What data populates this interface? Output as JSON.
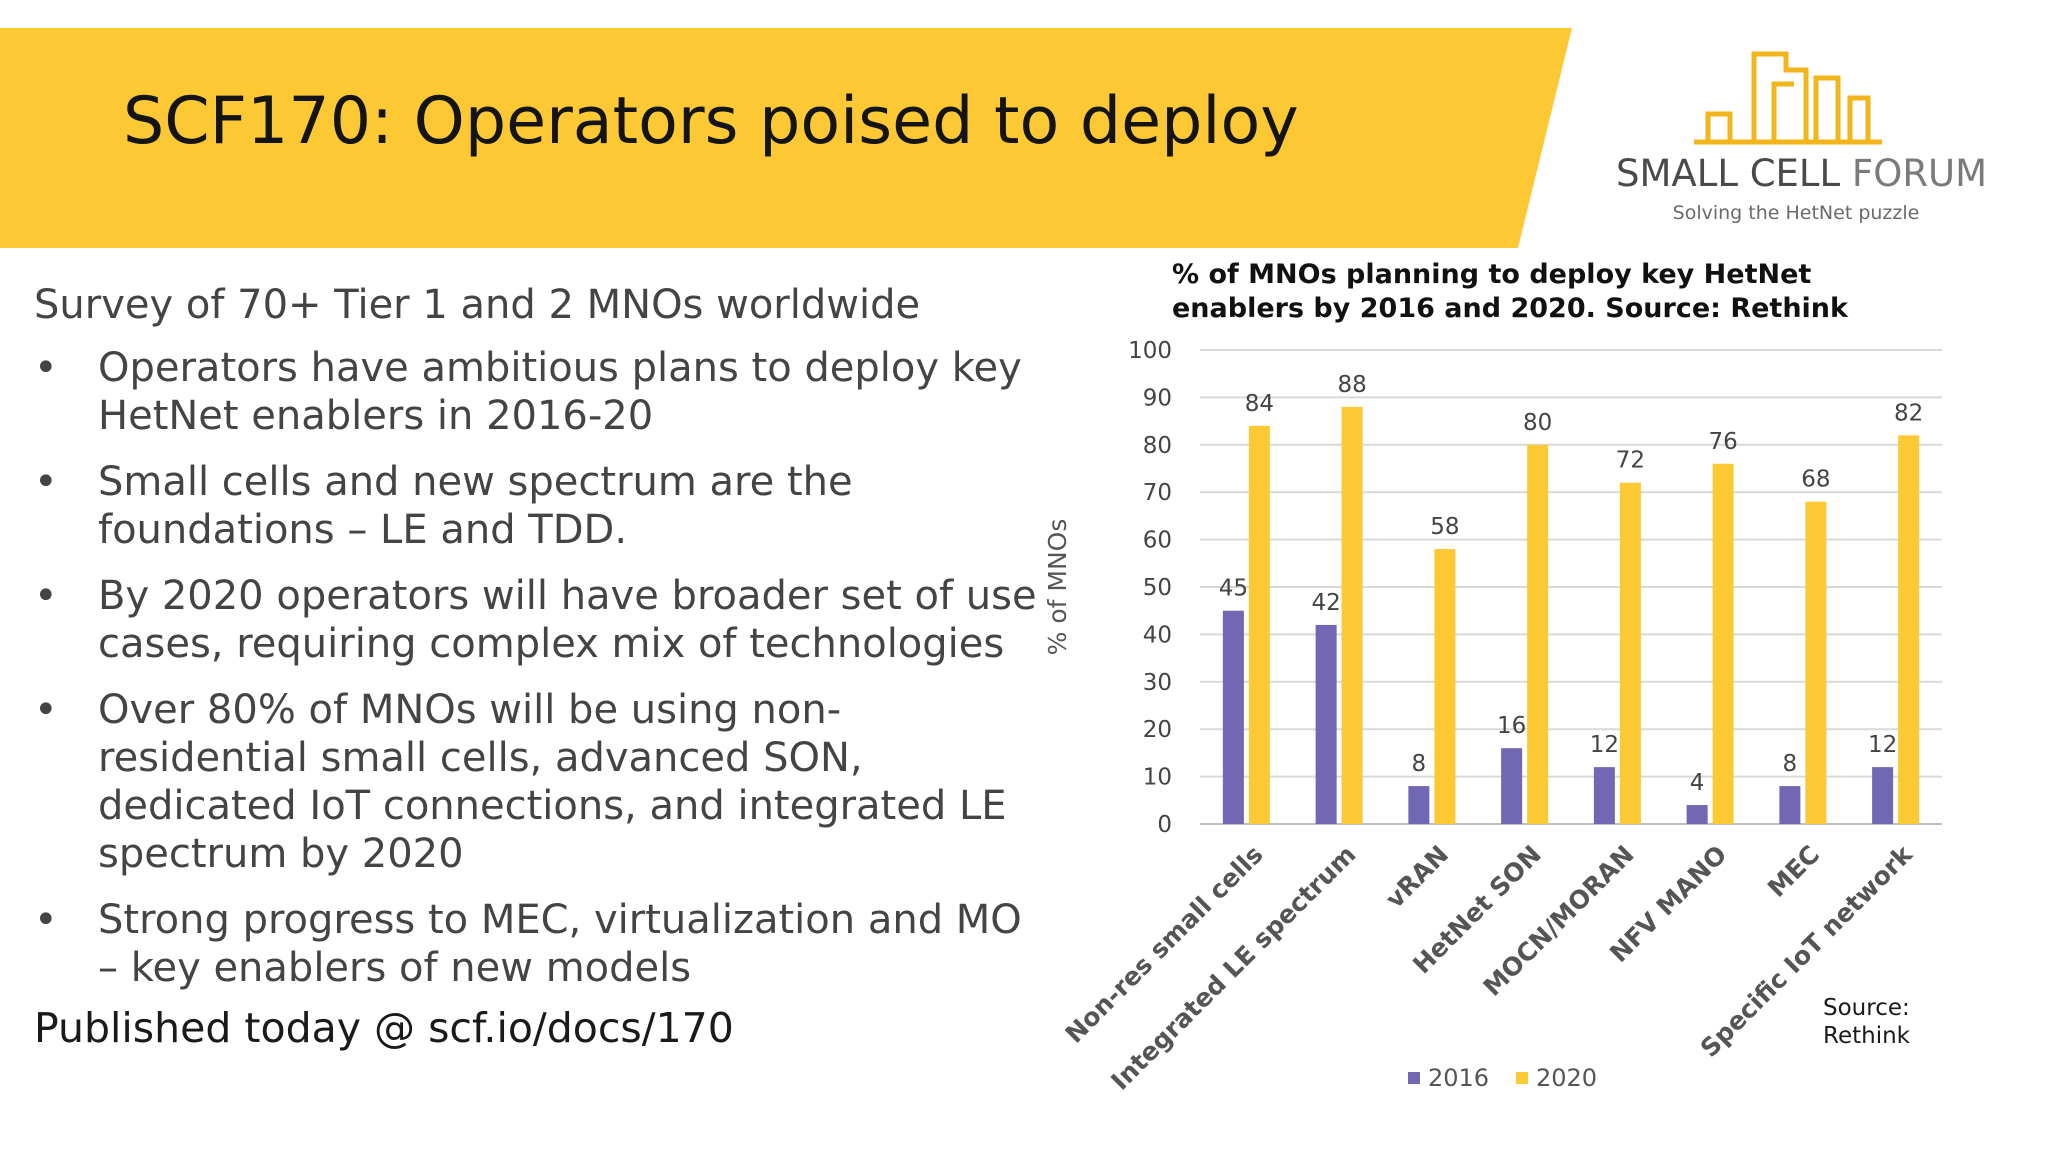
{
  "slide": {
    "title": "SCF170: Operators poised to deploy",
    "logo": {
      "name_bold": "SMALL CELL",
      "name_light": "FORUM",
      "tagline": "Solving the HetNet puzzle"
    },
    "survey": "Survey of 70+ Tier 1 and 2 MNOs worldwide",
    "bullet_symbol": "•",
    "bullets": [
      [
        "Operators have ambitious plans to deploy key",
        "HetNet enablers in 2016-20"
      ],
      [
        "Small cells and new spectrum are the",
        "foundations – LE and TDD."
      ],
      [
        "By 2020 operators will have broader set of use",
        "cases, requiring complex mix of technologies"
      ],
      [
        "Over 80% of MNOs will be using non-",
        "residential small cells, advanced SON,",
        "dedicated IoT connections, and integrated LE",
        "spectrum by 2020"
      ],
      [
        "Strong progress to MEC, virtualization and MO",
        "– key enablers of new models"
      ]
    ],
    "published": "Published today @ scf.io/docs/170",
    "source_note": [
      "Source:",
      "Rethink"
    ]
  },
  "colors": {
    "banner": "#fcc934",
    "series_2016": "#7267b3",
    "series_2020": "#fcc934",
    "grid": "#d9d9d9"
  },
  "chart_data": {
    "type": "bar",
    "title": [
      "% of MNOs planning to deploy key HetNet",
      "enablers by 2016 and 2020. Source: Rethink"
    ],
    "ylabel": "% of MNOs",
    "xlabel": "",
    "ylim": [
      0,
      100
    ],
    "yticks": [
      0,
      10,
      20,
      30,
      40,
      50,
      60,
      70,
      80,
      90,
      100
    ],
    "grid": true,
    "legend_position": "bottom",
    "categories": [
      "Non-res small cells",
      "Integrated LE spectrum",
      "vRAN",
      "HetNet SON",
      "MOCN/MORAN",
      "NFV MANO",
      "MEC",
      "Specific IoT network"
    ],
    "series": [
      {
        "name": "2016",
        "color": "#7267b3",
        "values": [
          45,
          42,
          8,
          16,
          12,
          4,
          8,
          12
        ]
      },
      {
        "name": "2020",
        "color": "#fcc934",
        "values": [
          84,
          88,
          58,
          80,
          72,
          76,
          68,
          82
        ]
      }
    ]
  }
}
